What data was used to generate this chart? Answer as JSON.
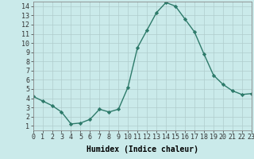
{
  "x": [
    0,
    1,
    2,
    3,
    4,
    5,
    6,
    7,
    8,
    9,
    10,
    11,
    12,
    13,
    14,
    15,
    16,
    17,
    18,
    19,
    20,
    21,
    22,
    23
  ],
  "y": [
    4.2,
    3.7,
    3.2,
    2.5,
    1.2,
    1.3,
    1.7,
    2.8,
    2.5,
    2.8,
    5.2,
    9.5,
    11.4,
    13.3,
    14.4,
    14.0,
    12.6,
    11.2,
    8.8,
    6.5,
    5.5,
    4.8,
    4.4,
    4.5
  ],
  "line_color": "#2d7a6a",
  "marker": "D",
  "marker_size": 2.2,
  "bg_color": "#caeaea",
  "grid_color": "#b0cccc",
  "xlabel": "Humidex (Indice chaleur)",
  "xlim": [
    0,
    23
  ],
  "ylim": [
    0.5,
    14.5
  ],
  "yticks": [
    1,
    2,
    3,
    4,
    5,
    6,
    7,
    8,
    9,
    10,
    11,
    12,
    13,
    14
  ],
  "xticks": [
    0,
    1,
    2,
    3,
    4,
    5,
    6,
    7,
    8,
    9,
    10,
    11,
    12,
    13,
    14,
    15,
    16,
    17,
    18,
    19,
    20,
    21,
    22,
    23
  ],
  "xlabel_fontsize": 7,
  "tick_fontsize": 6,
  "lw": 1.0
}
